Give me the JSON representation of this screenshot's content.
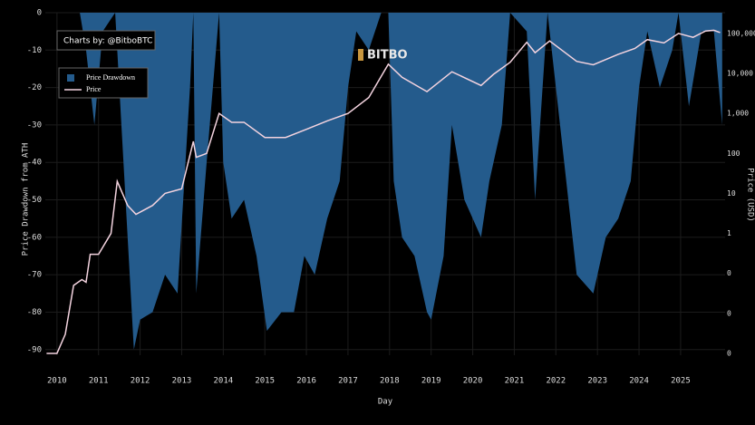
{
  "chart_data": {
    "type": "drawdown_area_price",
    "brand": "BITBO",
    "credit": "Charts by: @BitboBTC",
    "xlabel": "Day",
    "ylabel": "Price Drawdown from ATH",
    "y2label": "Price (USD)",
    "xlim": [
      2009.72,
      2026.07
    ],
    "xticks": [
      2010,
      2011,
      2012,
      2013,
      2014,
      2015,
      2016,
      2017,
      2018,
      2019,
      2020,
      2021,
      2022,
      2023,
      2024,
      2025
    ],
    "ylim": [
      -91.5,
      0
    ],
    "yticks": [
      0,
      -10,
      -20,
      -30,
      -40,
      -50,
      -60,
      -70,
      -80,
      -90
    ],
    "y2lim": [
      0.0009,
      330000
    ],
    "y2log": true,
    "y2ticks": [
      {
        "value": 100000,
        "label": "100,000"
      },
      {
        "value": 10000,
        "label": "10,000"
      },
      {
        "value": 1000,
        "label": "1,000"
      },
      100,
      10,
      1,
      {
        "value": 0.1,
        "label": "0"
      },
      {
        "value": 0.01,
        "label": "0"
      },
      {
        "value": 0.001,
        "label": "0"
      }
    ],
    "grid": true,
    "legend": "top-left",
    "series": [
      {
        "name": "Price Drawdown",
        "color": "#245b8c",
        "x": [
          2010.55,
          2010.7,
          2010.9,
          2011.1,
          2011.4,
          2011.5,
          2011.7,
          2011.85,
          2012.0,
          2012.3,
          2012.6,
          2012.9,
          2013.2,
          2013.28,
          2013.35,
          2013.6,
          2013.9,
          2014.0,
          2014.2,
          2014.5,
          2014.8,
          2015.05,
          2015.4,
          2015.7,
          2015.95,
          2016.2,
          2016.5,
          2016.8,
          2017.0,
          2017.2,
          2017.5,
          2017.8,
          2017.97,
          2018.1,
          2018.3,
          2018.6,
          2018.9,
          2019.0,
          2019.3,
          2019.5,
          2019.8,
          2020.2,
          2020.4,
          2020.7,
          2020.9,
          2021.3,
          2021.5,
          2021.8,
          2021.9,
          2022.2,
          2022.5,
          2022.9,
          2023.2,
          2023.5,
          2023.8,
          2024.0,
          2024.2,
          2024.5,
          2024.8,
          2024.95,
          2025.2,
          2025.5,
          2025.8,
          2026.0
        ],
        "values": [
          0,
          -10,
          -30,
          -5,
          0,
          -20,
          -60,
          -90,
          -82,
          -80,
          -70,
          -75,
          -20,
          0,
          -75,
          -40,
          0,
          -40,
          -55,
          -50,
          -65,
          -85,
          -80,
          -80,
          -65,
          -70,
          -55,
          -45,
          -20,
          -5,
          -10,
          0,
          0,
          -45,
          -60,
          -65,
          -80,
          -82,
          -65,
          -30,
          -50,
          -60,
          -45,
          -30,
          0,
          -5,
          -50,
          0,
          -10,
          -40,
          -70,
          -75,
          -60,
          -55,
          -45,
          -20,
          -5,
          -20,
          -10,
          0,
          -25,
          -5,
          -5,
          -30
        ]
      },
      {
        "name": "Price",
        "color": "#f3d3df",
        "axis": "y2",
        "x": [
          2009.75,
          2010.0,
          2010.2,
          2010.4,
          2010.6,
          2010.7,
          2010.8,
          2011.0,
          2011.3,
          2011.45,
          2011.7,
          2011.9,
          2012.3,
          2012.6,
          2013.0,
          2013.28,
          2013.35,
          2013.6,
          2013.9,
          2014.2,
          2014.5,
          2015.0,
          2015.5,
          2016.0,
          2016.5,
          2017.0,
          2017.5,
          2017.97,
          2018.3,
          2018.9,
          2019.5,
          2020.2,
          2020.5,
          2020.9,
          2021.3,
          2021.5,
          2021.85,
          2022.5,
          2022.9,
          2023.5,
          2023.9,
          2024.2,
          2024.6,
          2024.95,
          2025.3,
          2025.6,
          2025.8,
          2025.95
        ],
        "values": [
          0.001,
          0.001,
          0.003,
          0.05,
          0.07,
          0.06,
          0.3,
          0.3,
          1,
          20,
          5,
          3,
          5,
          10,
          13,
          200,
          80,
          100,
          1000,
          600,
          600,
          250,
          250,
          400,
          650,
          1000,
          2500,
          17000,
          8000,
          3500,
          11000,
          5000,
          9500,
          19000,
          60000,
          33000,
          65000,
          20000,
          16500,
          30000,
          42000,
          70000,
          58000,
          100000,
          80000,
          115000,
          120000,
          105000
        ]
      }
    ]
  }
}
